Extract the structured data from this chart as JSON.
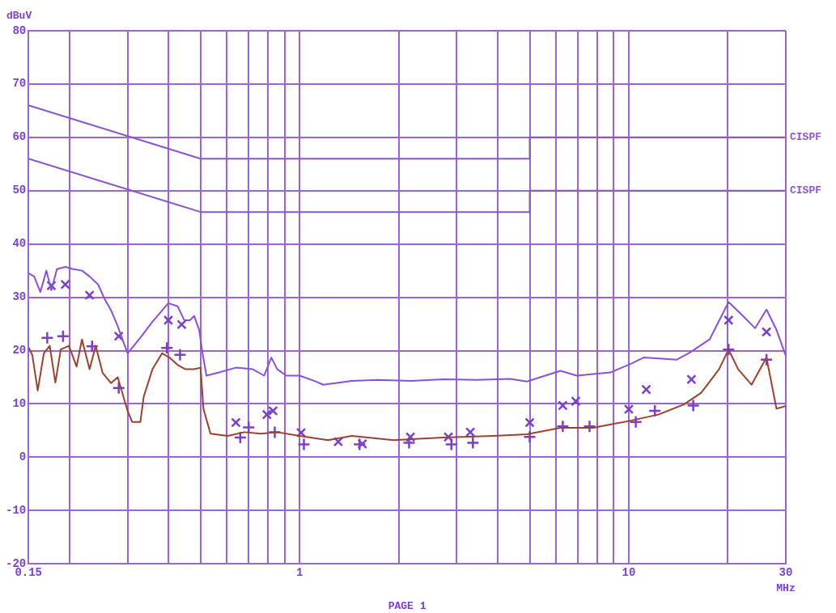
{
  "chart_data": {
    "type": "line",
    "xlabel": "MHz",
    "ylabel": "dBuV",
    "annotations": [
      "PAGE 1"
    ],
    "log": "x",
    "grid": true,
    "legend": false,
    "line_style": "solid",
    "marker": "none",
    "xlim": [
      0.15,
      30
    ],
    "ylim": [
      -20,
      80
    ],
    "xticks": [
      {
        "value": 0.15,
        "label": "0.15"
      },
      {
        "value": 0.2,
        "label": null
      },
      {
        "value": 0.3,
        "label": null
      },
      {
        "value": 0.4,
        "label": null
      },
      {
        "value": 0.5,
        "label": null
      },
      {
        "value": 0.6,
        "label": null
      },
      {
        "value": 0.7,
        "label": null
      },
      {
        "value": 0.8,
        "label": null
      },
      {
        "value": 0.9,
        "label": null
      },
      1,
      {
        "value": 2,
        "label": null
      },
      {
        "value": 3,
        "label": null
      },
      {
        "value": 4,
        "label": null
      },
      {
        "value": 5,
        "label": null
      },
      {
        "value": 6,
        "label": null
      },
      {
        "value": 7,
        "label": null
      },
      {
        "value": 8,
        "label": null
      },
      {
        "value": 9,
        "label": null
      },
      10,
      {
        "value": 20,
        "label": null
      },
      30
    ],
    "yticks": [
      -20,
      -10,
      0,
      10,
      20,
      30,
      40,
      50,
      60,
      70,
      80
    ],
    "series": [
      {
        "name": "CISPF",
        "color": "#8a55d0",
        "x": [
          0.15,
          0.5,
          5,
          5,
          30
        ],
        "values": [
          66,
          56,
          56,
          60,
          60
        ]
      },
      {
        "name": "CISPF",
        "color": "#8a55d0",
        "x": [
          0.15,
          0.5,
          5,
          5,
          30
        ],
        "values": [
          56,
          46,
          46,
          50,
          50
        ]
      },
      {
        "color": "#8b4fe0",
        "x": [
          0.15,
          0.156,
          0.163,
          0.17,
          0.176,
          0.183,
          0.194,
          0.205,
          0.218,
          0.23,
          0.244,
          0.255,
          0.267,
          0.28,
          0.291,
          0.3,
          0.328,
          0.357,
          0.399,
          0.426,
          0.446,
          0.464,
          0.478,
          0.495,
          0.506,
          0.521,
          0.569,
          0.64,
          0.72,
          0.78,
          0.82,
          0.855,
          0.91,
          1.0,
          1.11,
          1.18,
          1.44,
          1.72,
          2.17,
          2.74,
          3.45,
          4.36,
          4.9,
          6.2,
          6.95,
          8.8,
          10.2,
          11.1,
          14.0,
          15.3,
          17.6,
          20.1,
          22.4,
          24.2,
          26.2,
          28.1,
          30
        ],
        "values": [
          34.5,
          33.9,
          31.0,
          35.0,
          31.3,
          35.3,
          35.7,
          35.3,
          35.0,
          33.9,
          32.4,
          29.8,
          27.6,
          24.6,
          21.7,
          19.5,
          22.4,
          25.4,
          28.9,
          28.3,
          25.7,
          25.7,
          26.5,
          23.9,
          19.8,
          15.3,
          15.9,
          16.8,
          16.5,
          15.3,
          18.7,
          16.5,
          15.3,
          15.3,
          14.3,
          13.6,
          14.3,
          14.5,
          14.3,
          14.6,
          14.5,
          14.7,
          14.2,
          16.2,
          15.3,
          15.9,
          17.6,
          18.7,
          18.3,
          19.6,
          22.1,
          29.1,
          26.3,
          24.2,
          27.7,
          23.9,
          19.0
        ]
      },
      {
        "color": "#a0402a",
        "x": [
          0.15,
          0.154,
          0.16,
          0.167,
          0.174,
          0.181,
          0.188,
          0.199,
          0.21,
          0.218,
          0.23,
          0.24,
          0.252,
          0.267,
          0.28,
          0.3,
          0.31,
          0.328,
          0.336,
          0.357,
          0.382,
          0.402,
          0.426,
          0.45,
          0.478,
          0.5,
          0.51,
          0.536,
          0.604,
          0.68,
          0.762,
          0.855,
          1.0,
          1.22,
          1.44,
          1.93,
          2.74,
          3.88,
          4.9,
          6.2,
          7.8,
          10.2,
          12.3,
          14.7,
          16.6,
          18.8,
          20.1,
          21.5,
          23.6,
          26.2,
          28.1,
          30
        ],
        "values": [
          20.6,
          19.2,
          12.5,
          19.5,
          20.9,
          14.0,
          20.2,
          20.9,
          17.0,
          22.1,
          16.5,
          20.9,
          15.8,
          13.9,
          15.0,
          8.7,
          6.6,
          6.6,
          11.4,
          16.5,
          19.5,
          18.7,
          17.3,
          16.5,
          16.5,
          16.8,
          9.1,
          4.4,
          4.0,
          4.7,
          4.4,
          4.7,
          4.0,
          3.2,
          4.0,
          3.2,
          3.7,
          4.0,
          4.3,
          5.5,
          5.5,
          6.9,
          8.0,
          9.9,
          12.1,
          16.5,
          20.2,
          16.5,
          13.6,
          18.7,
          9.1,
          9.6
        ]
      },
      {
        "type": "scatter",
        "marker": "x",
        "color": "#7a3fd0",
        "x": [
          0.176,
          0.194,
          0.23,
          0.282,
          0.399,
          0.438,
          0.64,
          0.795,
          0.83,
          1.01,
          1.31,
          1.55,
          2.17,
          2.83,
          3.3,
          5.0,
          6.3,
          6.9,
          10.0,
          11.3,
          15.5,
          20.1,
          26.2
        ],
        "values": [
          32.2,
          32.4,
          30.4,
          22.7,
          25.7,
          24.9,
          6.5,
          8.0,
          8.7,
          4.6,
          2.9,
          2.5,
          3.8,
          3.8,
          4.7,
          6.5,
          9.7,
          10.5,
          9.0,
          12.7,
          14.6,
          25.7,
          23.5
        ]
      },
      {
        "type": "scatter",
        "marker": "cross",
        "color": "#7a3fd0",
        "x": [
          0.171,
          0.191,
          0.234,
          0.282,
          0.395,
          0.433,
          0.66,
          0.7,
          0.84,
          1.03,
          1.52,
          2.15,
          2.89,
          3.36,
          5.0,
          6.3,
          7.6,
          10.5,
          12.0,
          15.7,
          20.1,
          26.2
        ],
        "values": [
          22.4,
          22.7,
          20.8,
          13.0,
          20.5,
          19.2,
          3.7,
          5.6,
          4.7,
          2.4,
          2.4,
          2.7,
          2.4,
          2.7,
          3.8,
          5.8,
          5.8,
          6.6,
          8.7,
          9.7,
          20.2,
          18.3
        ]
      }
    ]
  }
}
